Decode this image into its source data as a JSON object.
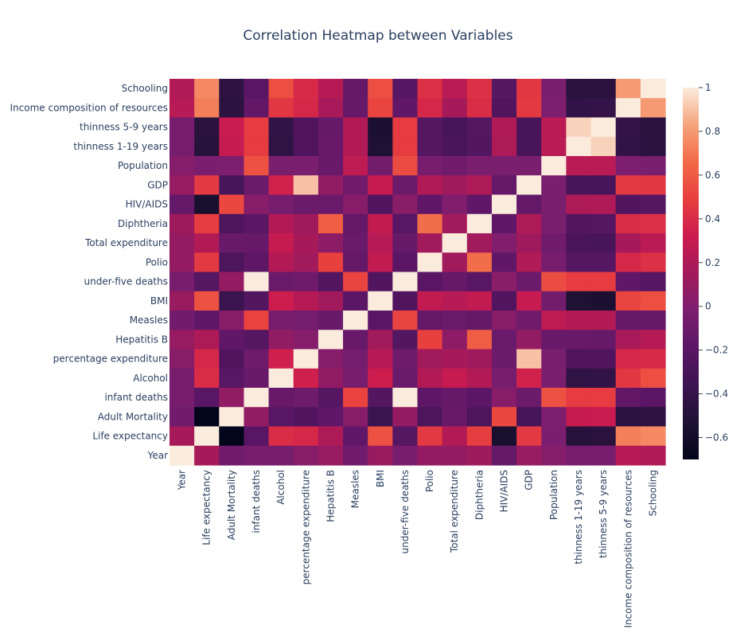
{
  "chart_data": {
    "type": "heatmap",
    "title": "Correlation Heatmap between Variables",
    "variables": [
      "Year",
      "Life expectancy",
      "Adult Mortality",
      "infant deaths",
      "Alcohol",
      "percentage expenditure",
      "Hepatitis B",
      "Measles",
      "BMI",
      "under-five deaths",
      "Polio",
      "Total expenditure",
      "Diphtheria",
      "HIV/AIDS",
      "GDP",
      "Population",
      "thinness  1-19 years",
      "thinness 5-9 years",
      "Income composition of resources",
      "Schooling"
    ],
    "x_order": [
      "Year",
      "Life expectancy",
      "Adult Mortality",
      "infant deaths",
      "Alcohol",
      "percentage expenditure",
      "Hepatitis B",
      "Measles",
      "BMI",
      "under-five deaths",
      "Polio",
      "Total expenditure",
      "Diphtheria",
      "HIV/AIDS",
      "GDP",
      "Population",
      "thinness  1-19 years",
      "thinness 5-9 years",
      "Income composition of resources",
      "Schooling"
    ],
    "y_order_top_to_bottom": [
      "Schooling",
      "Income composition of resources",
      "thinness 5-9 years",
      "thinness  1-19 years",
      "Population",
      "GDP",
      "HIV/AIDS",
      "Diphtheria",
      "Total expenditure",
      "Polio",
      "under-five deaths",
      "BMI",
      "Measles",
      "Hepatitis B",
      "percentage expenditure",
      "Alcohol",
      "infant deaths",
      "Adult Mortality",
      "Life expectancy",
      "Year"
    ],
    "correlation_matrix": [
      [
        1.0,
        0.17,
        -0.08,
        -0.04,
        -0.05,
        0.03,
        0.1,
        -0.08,
        0.11,
        -0.04,
        0.09,
        0.09,
        0.13,
        -0.14,
        0.1,
        0.02,
        -0.05,
        -0.05,
        0.24,
        0.21
      ],
      [
        0.17,
        1.0,
        -0.7,
        -0.2,
        0.4,
        0.38,
        0.2,
        -0.16,
        0.56,
        -0.22,
        0.46,
        0.22,
        0.48,
        -0.56,
        0.46,
        -0.02,
        -0.48,
        -0.47,
        0.72,
        0.75
      ],
      [
        -0.08,
        -0.7,
        1.0,
        0.08,
        -0.2,
        -0.24,
        -0.16,
        0.03,
        -0.38,
        0.09,
        -0.27,
        -0.12,
        -0.27,
        0.52,
        -0.3,
        -0.01,
        0.3,
        0.31,
        -0.46,
        -0.45
      ],
      [
        -0.04,
        -0.2,
        0.08,
        1.0,
        -0.12,
        -0.09,
        -0.22,
        0.5,
        -0.23,
        1.0,
        -0.17,
        -0.13,
        -0.18,
        0.03,
        -0.1,
        0.56,
        0.47,
        0.47,
        -0.15,
        -0.19
      ],
      [
        -0.05,
        0.4,
        -0.2,
        -0.12,
        1.0,
        0.34,
        0.08,
        -0.05,
        0.33,
        -0.11,
        0.22,
        0.3,
        0.22,
        -0.05,
        0.35,
        -0.03,
        -0.43,
        -0.42,
        0.45,
        0.55
      ],
      [
        0.03,
        0.38,
        -0.24,
        -0.09,
        0.34,
        1.0,
        0.02,
        -0.06,
        0.23,
        -0.09,
        0.15,
        0.17,
        0.14,
        -0.1,
        0.9,
        -0.03,
        -0.25,
        -0.25,
        0.38,
        0.39
      ],
      [
        0.1,
        0.2,
        -0.16,
        -0.22,
        0.08,
        0.02,
        1.0,
        -0.12,
        0.15,
        -0.23,
        0.49,
        0.06,
        0.61,
        -0.11,
        0.08,
        -0.12,
        -0.12,
        -0.13,
        0.18,
        0.23
      ],
      [
        -0.08,
        -0.16,
        0.03,
        0.5,
        -0.05,
        -0.06,
        -0.12,
        1.0,
        -0.18,
        0.51,
        -0.14,
        -0.11,
        -0.14,
        0.03,
        -0.08,
        0.27,
        0.22,
        0.22,
        -0.13,
        -0.14
      ],
      [
        0.11,
        0.56,
        -0.38,
        -0.23,
        0.33,
        0.23,
        0.15,
        -0.18,
        1.0,
        -0.24,
        0.28,
        0.24,
        0.28,
        -0.24,
        0.3,
        -0.07,
        -0.53,
        -0.54,
        0.51,
        0.55
      ],
      [
        -0.04,
        -0.22,
        0.09,
        1.0,
        -0.11,
        -0.09,
        -0.23,
        0.51,
        -0.24,
        1.0,
        -0.19,
        -0.13,
        -0.2,
        0.04,
        -0.1,
        0.54,
        0.47,
        0.47,
        -0.16,
        -0.21
      ],
      [
        0.09,
        0.46,
        -0.27,
        -0.17,
        0.22,
        0.15,
        0.49,
        -0.14,
        0.28,
        -0.19,
        1.0,
        0.15,
        0.67,
        -0.16,
        0.21,
        -0.04,
        -0.22,
        -0.22,
        0.38,
        0.42
      ],
      [
        0.09,
        0.22,
        -0.12,
        -0.13,
        0.3,
        0.17,
        0.06,
        -0.11,
        0.24,
        -0.13,
        0.15,
        1.0,
        0.15,
        0.0,
        0.14,
        -0.08,
        -0.28,
        -0.29,
        0.17,
        0.25
      ],
      [
        0.13,
        0.48,
        -0.27,
        -0.18,
        0.22,
        0.14,
        0.61,
        -0.14,
        0.28,
        -0.2,
        0.67,
        0.15,
        1.0,
        -0.16,
        0.2,
        -0.03,
        -0.23,
        -0.22,
        0.4,
        0.42
      ],
      [
        -0.14,
        -0.56,
        0.52,
        0.03,
        -0.05,
        -0.1,
        -0.11,
        0.03,
        -0.24,
        0.04,
        -0.16,
        0.0,
        -0.16,
        1.0,
        -0.14,
        -0.03,
        0.2,
        0.21,
        -0.25,
        -0.22
      ],
      [
        0.1,
        0.46,
        -0.3,
        -0.1,
        0.35,
        0.9,
        0.08,
        -0.08,
        0.3,
        -0.1,
        0.21,
        0.14,
        0.2,
        -0.14,
        1.0,
        -0.03,
        -0.29,
        -0.29,
        0.46,
        0.45
      ],
      [
        0.02,
        -0.02,
        -0.01,
        0.56,
        -0.03,
        -0.03,
        -0.12,
        0.27,
        -0.07,
        0.54,
        -0.04,
        -0.08,
        -0.03,
        -0.03,
        -0.03,
        1.0,
        0.25,
        0.25,
        -0.01,
        -0.03
      ],
      [
        -0.05,
        -0.48,
        0.3,
        0.47,
        -0.43,
        -0.25,
        -0.12,
        0.22,
        -0.53,
        0.47,
        -0.22,
        -0.28,
        -0.23,
        0.2,
        -0.29,
        0.25,
        1.0,
        0.94,
        -0.42,
        -0.47
      ],
      [
        -0.05,
        -0.47,
        0.31,
        0.47,
        -0.42,
        -0.25,
        -0.13,
        0.22,
        -0.54,
        0.47,
        -0.22,
        -0.29,
        -0.22,
        0.21,
        -0.29,
        0.25,
        0.94,
        1.0,
        -0.41,
        -0.47
      ],
      [
        0.24,
        0.72,
        -0.46,
        -0.15,
        0.45,
        0.38,
        0.18,
        -0.13,
        0.51,
        -0.16,
        0.38,
        0.17,
        0.4,
        -0.25,
        0.46,
        -0.01,
        -0.42,
        -0.41,
        1.0,
        0.8
      ],
      [
        0.21,
        0.75,
        -0.45,
        -0.19,
        0.55,
        0.39,
        0.23,
        -0.14,
        0.55,
        -0.21,
        0.42,
        0.25,
        0.42,
        -0.22,
        0.45,
        -0.03,
        -0.47,
        -0.47,
        0.8,
        1.0
      ]
    ],
    "zlim": [
      -0.7,
      1.0
    ],
    "colorbar_ticks": [
      1,
      0.8,
      0.6,
      0.4,
      0.2,
      0,
      -0.2,
      -0.4,
      -0.6
    ],
    "colorbar_tick_labels": [
      "1",
      "0.8",
      "0.6",
      "0.4",
      "0.2",
      "0",
      "−0.2",
      "−0.4",
      "−0.6"
    ],
    "colorscale": [
      [
        0.0,
        "#03051a"
      ],
      [
        0.1,
        "#1e1133"
      ],
      [
        0.2,
        "#3d1452"
      ],
      [
        0.3,
        "#5a1665"
      ],
      [
        0.4,
        "#7c1e6f"
      ],
      [
        0.5,
        "#a11a5b"
      ],
      [
        0.6,
        "#cb1b4f"
      ],
      [
        0.7,
        "#e83f3f"
      ],
      [
        0.8,
        "#f26a47"
      ],
      [
        0.9,
        "#f6a47d"
      ],
      [
        1.0,
        "#faebdd"
      ]
    ]
  }
}
